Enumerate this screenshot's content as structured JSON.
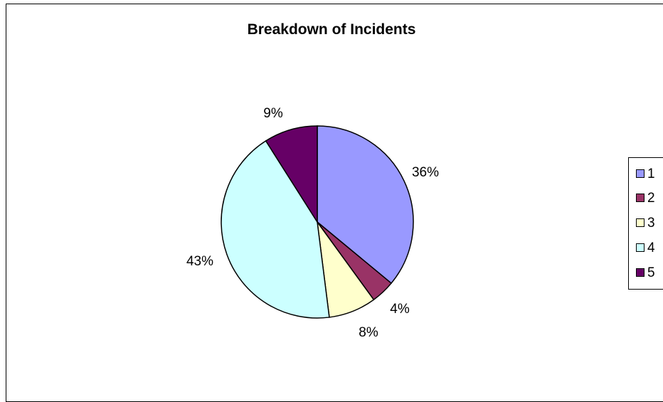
{
  "chart_data": {
    "type": "pie",
    "title": "Breakdown of Incidents",
    "slices": [
      {
        "name": "1",
        "value": 36,
        "label": "36%",
        "color": "#9999ff"
      },
      {
        "name": "2",
        "value": 4,
        "label": "4%",
        "color": "#993366"
      },
      {
        "name": "3",
        "value": 8,
        "label": "8%",
        "color": "#ffffcc"
      },
      {
        "name": "4",
        "value": 43,
        "label": "43%",
        "color": "#ccffff"
      },
      {
        "name": "5",
        "value": 9,
        "label": "9%",
        "color": "#660066"
      }
    ],
    "legend": {
      "placement": "right",
      "entries": [
        "1",
        "2",
        "3",
        "4",
        "5"
      ]
    }
  }
}
